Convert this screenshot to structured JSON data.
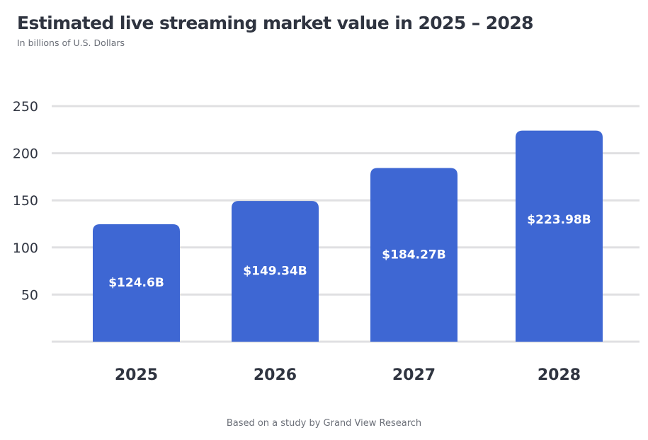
{
  "chart_data": {
    "type": "bar",
    "title": "Estimated live streaming market value in 2025 – 2028",
    "subtitle": "In billions of U.S. Dollars",
    "categories": [
      "2025",
      "2026",
      "2027",
      "2028"
    ],
    "values": [
      124.6,
      149.34,
      184.27,
      223.98
    ],
    "data_labels": [
      "$124.6B",
      "$149.34B",
      "$184.27B",
      "$223.98B"
    ],
    "yticks": [
      50,
      100,
      150,
      200,
      250
    ],
    "ylim": [
      0,
      250
    ],
    "grid": true,
    "xlabel": "",
    "ylabel": "",
    "bar_color": "#3e67d3",
    "footer": "Based on a study by Grand View Research"
  }
}
